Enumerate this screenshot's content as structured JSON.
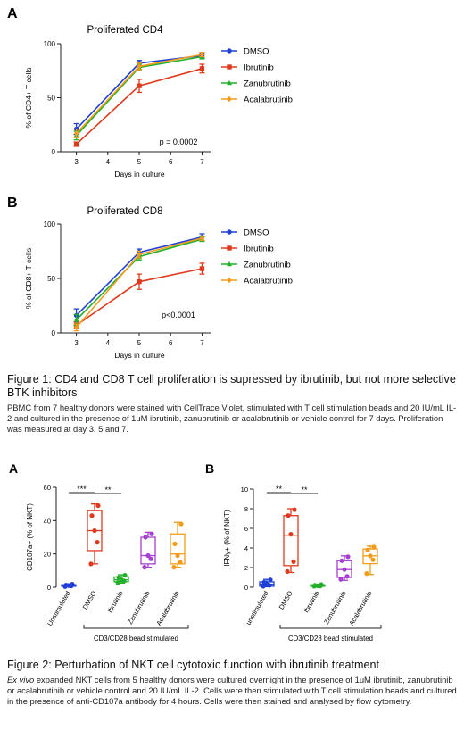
{
  "figure1": {
    "caption_title": "Figure 1: CD4 and CD8 T cell proliferation is supressed by ibrutinib, but not more selective BTK inhibitors",
    "caption_body": "PBMC from 7 healthy donors were stained with CellTrace Violet, stimulated with T cell stimulation beads and 20 IU/mL IL-2 and cultured in the presence of 1uM ibrutinib, zanubrutinib or acalabrutinib or vehicle control for 7 days. Proliferation was measured at day 3, 5 and 7."
  },
  "figure2": {
    "caption_title": "Figure 2: Perturbation of NKT cell cytotoxic function with ibrutinib treatment",
    "caption_italic": "Ex vivo",
    "caption_body": " expanded NKT cells from 5 healthy donors were cultured overnight in the presence of 1uM ibrutinib, zanubrutinib or acalabrutinib or vehicle control and 20 IU/mL IL-2. Cells were then stimulated with T cell stimulation beads and cultured in the presence of anti-CD107a antibody for 4 hours. Cells were then stained and analysed by flow cytometry."
  },
  "chart_data": [
    {
      "panel": "A",
      "type": "line",
      "title": "Proliferated CD4",
      "xlabel": "Days in culture",
      "ylabel": "% of CD4+ T cells",
      "x": [
        3,
        5,
        7
      ],
      "xlim": [
        2.5,
        7.3
      ],
      "xticks": [
        3,
        4,
        5,
        6,
        7
      ],
      "ylim": [
        0,
        100
      ],
      "yticks": [
        0,
        50,
        100
      ],
      "annotation": "p = 0.0002",
      "legend_position": "right",
      "series": [
        {
          "name": "DMSO",
          "color": "#1f3fd6",
          "marker": "circle",
          "values": [
            21,
            82,
            89
          ],
          "errors": [
            5,
            2.5,
            2
          ]
        },
        {
          "name": "Ibrutinib",
          "color": "#e03a1e",
          "marker": "square",
          "values": [
            7,
            61,
            77
          ],
          "errors": [
            2,
            6,
            4
          ]
        },
        {
          "name": "Zanubrutinib",
          "color": "#22b02a",
          "marker": "triangle",
          "values": [
            15,
            78,
            88
          ],
          "errors": [
            4,
            3,
            2
          ]
        },
        {
          "name": "Acalabrutinib",
          "color": "#f39c1c",
          "marker": "diamond",
          "values": [
            17,
            79,
            90
          ],
          "errors": [
            4,
            3,
            2
          ]
        }
      ]
    },
    {
      "panel": "B",
      "type": "line",
      "title": "Proliferated CD8",
      "xlabel": "Days in culture",
      "ylabel": "% of CD8+ T cells",
      "x": [
        3,
        5,
        7
      ],
      "xlim": [
        2.5,
        7.3
      ],
      "xticks": [
        3,
        4,
        5,
        6,
        7
      ],
      "ylim": [
        0,
        100
      ],
      "yticks": [
        0,
        50,
        100
      ],
      "annotation": "p<0.0001",
      "legend_position": "right",
      "series": [
        {
          "name": "DMSO",
          "color": "#1f3fd6",
          "marker": "circle",
          "values": [
            16,
            74,
            88
          ],
          "errors": [
            6,
            3,
            3
          ]
        },
        {
          "name": "Ibrutinib",
          "color": "#e03a1e",
          "marker": "square",
          "values": [
            7,
            47,
            59
          ],
          "errors": [
            3,
            7,
            5
          ]
        },
        {
          "name": "Zanubrutinib",
          "color": "#22b02a",
          "marker": "triangle",
          "values": [
            12,
            70,
            86
          ],
          "errors": [
            5,
            3,
            2
          ]
        },
        {
          "name": "Acalabrutinib",
          "color": "#f39c1c",
          "marker": "diamond",
          "values": [
            5,
            72,
            87
          ],
          "errors": [
            3,
            3,
            2
          ]
        }
      ]
    },
    {
      "panel": "A",
      "type": "box",
      "ylabel": "CD107a+ (% of NKT)",
      "ylim": [
        0,
        60
      ],
      "yticks": [
        0,
        20,
        40,
        60
      ],
      "categories": [
        "Unstimulated",
        "DMSO",
        "Ibrutinib",
        "Zanubrutinib",
        "Acalabrutinib"
      ],
      "colors": [
        "#1f3fd6",
        "#e03a1e",
        "#22b02a",
        "#a640cf",
        "#f39c1c"
      ],
      "boxes": [
        {
          "min": 0.3,
          "q1": 0.6,
          "median": 1.0,
          "q3": 1.5,
          "max": 2.0,
          "points": [
            0.4,
            0.8,
            1.0,
            1.3,
            1.8
          ]
        },
        {
          "min": 14,
          "q1": 22,
          "median": 34,
          "q3": 46,
          "max": 50,
          "points": [
            14,
            27,
            34,
            43,
            49
          ]
        },
        {
          "min": 2.5,
          "q1": 3.3,
          "median": 4.5,
          "q3": 6.2,
          "max": 7.5,
          "points": [
            2.8,
            3.8,
            4.5,
            5.8,
            7.2
          ]
        },
        {
          "min": 12,
          "q1": 14,
          "median": 19,
          "q3": 30,
          "max": 33,
          "points": [
            12,
            17,
            19,
            30,
            32
          ]
        },
        {
          "min": 12,
          "q1": 14,
          "median": 20,
          "q3": 32,
          "max": 39,
          "points": [
            12,
            15,
            19,
            26,
            38
          ]
        }
      ],
      "xlabel": "CD3/CD28 bead stimulated",
      "significance": [
        {
          "from": 0,
          "to": 1,
          "label": "***"
        },
        {
          "from": 1,
          "to": 2,
          "label": "**"
        }
      ]
    },
    {
      "panel": "B",
      "type": "box",
      "ylabel": "IFNγ+ (% of NKT)",
      "ylim": [
        0,
        10
      ],
      "yticks": [
        0,
        2,
        4,
        6,
        8,
        10
      ],
      "categories": [
        "unstimulated",
        "DMSO",
        "Ibrutinib",
        "Zanubrutinib",
        "Acalabrutinib"
      ],
      "colors": [
        "#1f3fd6",
        "#e03a1e",
        "#22b02a",
        "#a640cf",
        "#f39c1c"
      ],
      "boxes": [
        {
          "min": 0.05,
          "q1": 0.1,
          "median": 0.3,
          "q3": 0.55,
          "max": 0.8,
          "points": [
            0.1,
            0.2,
            0.3,
            0.5,
            0.75
          ]
        },
        {
          "min": 1.5,
          "q1": 2.2,
          "median": 5.3,
          "q3": 7.3,
          "max": 8.0,
          "points": [
            1.6,
            2.6,
            5.4,
            7.3,
            7.9
          ]
        },
        {
          "min": 0.05,
          "q1": 0.1,
          "median": 0.15,
          "q3": 0.25,
          "max": 0.3,
          "points": [
            0.1,
            0.12,
            0.15,
            0.2,
            0.28
          ]
        },
        {
          "min": 0.7,
          "q1": 1.0,
          "median": 1.8,
          "q3": 2.7,
          "max": 3.2,
          "points": [
            0.8,
            1.1,
            1.8,
            2.7,
            3.1
          ]
        },
        {
          "min": 1.3,
          "q1": 2.4,
          "median": 3.2,
          "q3": 3.9,
          "max": 4.2,
          "points": [
            1.4,
            2.8,
            3.2,
            3.8,
            4.1
          ]
        }
      ],
      "xlabel": "CD3/CD28 bead stimulated",
      "significance": [
        {
          "from": 0,
          "to": 1,
          "label": "**"
        },
        {
          "from": 1,
          "to": 2,
          "label": "**"
        }
      ]
    }
  ]
}
